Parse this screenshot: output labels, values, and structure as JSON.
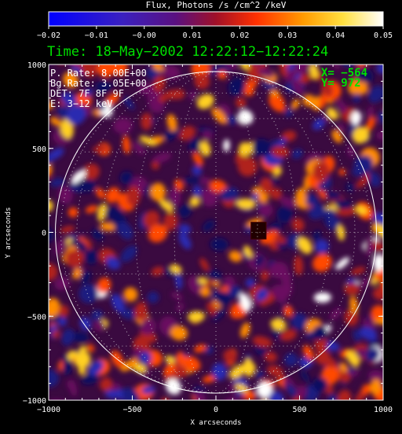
{
  "colorbar": {
    "title": "Flux, Photons /s /cm^2 /keV",
    "tick_labels": [
      "−0.02",
      "−0.01",
      "−0.00",
      "0.01",
      "0.02",
      "0.03",
      "0.04",
      "0.05"
    ],
    "range": [
      -0.02,
      0.05
    ]
  },
  "time_label": "Time: 18−May−2002 12:22:12−12:22:24",
  "info_lines": [
    "P. Rate:  8.00E+00",
    "Bg.Rate:  3.05E+00",
    "DET: 7F 8F 9F",
    "E: 3−12 keV"
  ],
  "cursor": {
    "x_text": "X= −564",
    "y_text": "Y=  972"
  },
  "colors": {
    "annotation_green": "#00e000",
    "axes": "#ffffff",
    "background": "#000000"
  },
  "chart_data": {
    "type": "heatmap",
    "title": "",
    "xlabel": "X arcseconds",
    "ylabel": "Y arcseconds",
    "xlim": [
      -1000,
      1000
    ],
    "ylim": [
      -1000,
      1000
    ],
    "x_ticks": [
      -1000,
      -500,
      0,
      500,
      1000
    ],
    "y_ticks": [
      1000,
      500,
      0,
      -500,
      -1000
    ],
    "x_tick_labels": [
      "−1000",
      "−500",
      "0",
      "500",
      "1000"
    ],
    "y_tick_labels": [
      "1000",
      "500",
      "0",
      "−500",
      "−1000"
    ],
    "colormap": "black-blue-purple-red-orange-yellow-white",
    "solar_disk_radius_arcsec": 960,
    "grid": "dotted heliographic grid inside disk",
    "highlight_box": {
      "x_range": [
        210,
        300
      ],
      "y_range": [
        -40,
        60
      ]
    }
  }
}
